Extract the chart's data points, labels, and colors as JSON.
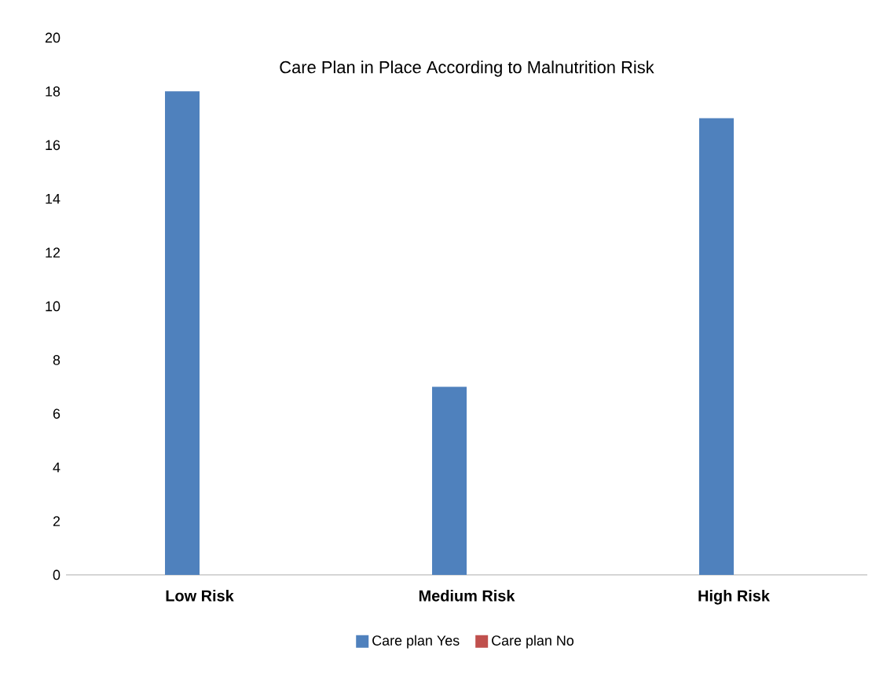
{
  "chart_data": {
    "type": "bar",
    "title": "Care Plan in Place According to Malnutrition Risk",
    "categories": [
      "Low Risk",
      "Medium Risk",
      "High Risk"
    ],
    "series": [
      {
        "name": "Care plan Yes",
        "color": "#4f81bd",
        "values": [
          18,
          7,
          17
        ]
      },
      {
        "name": "Care plan No",
        "color": "#c0504d",
        "values": [
          0,
          0,
          0
        ]
      }
    ],
    "ylim": [
      0,
      20
    ],
    "yticks": [
      0,
      2,
      4,
      6,
      8,
      10,
      12,
      14,
      16,
      18,
      20
    ],
    "grid": false,
    "legend": "bottom"
  }
}
